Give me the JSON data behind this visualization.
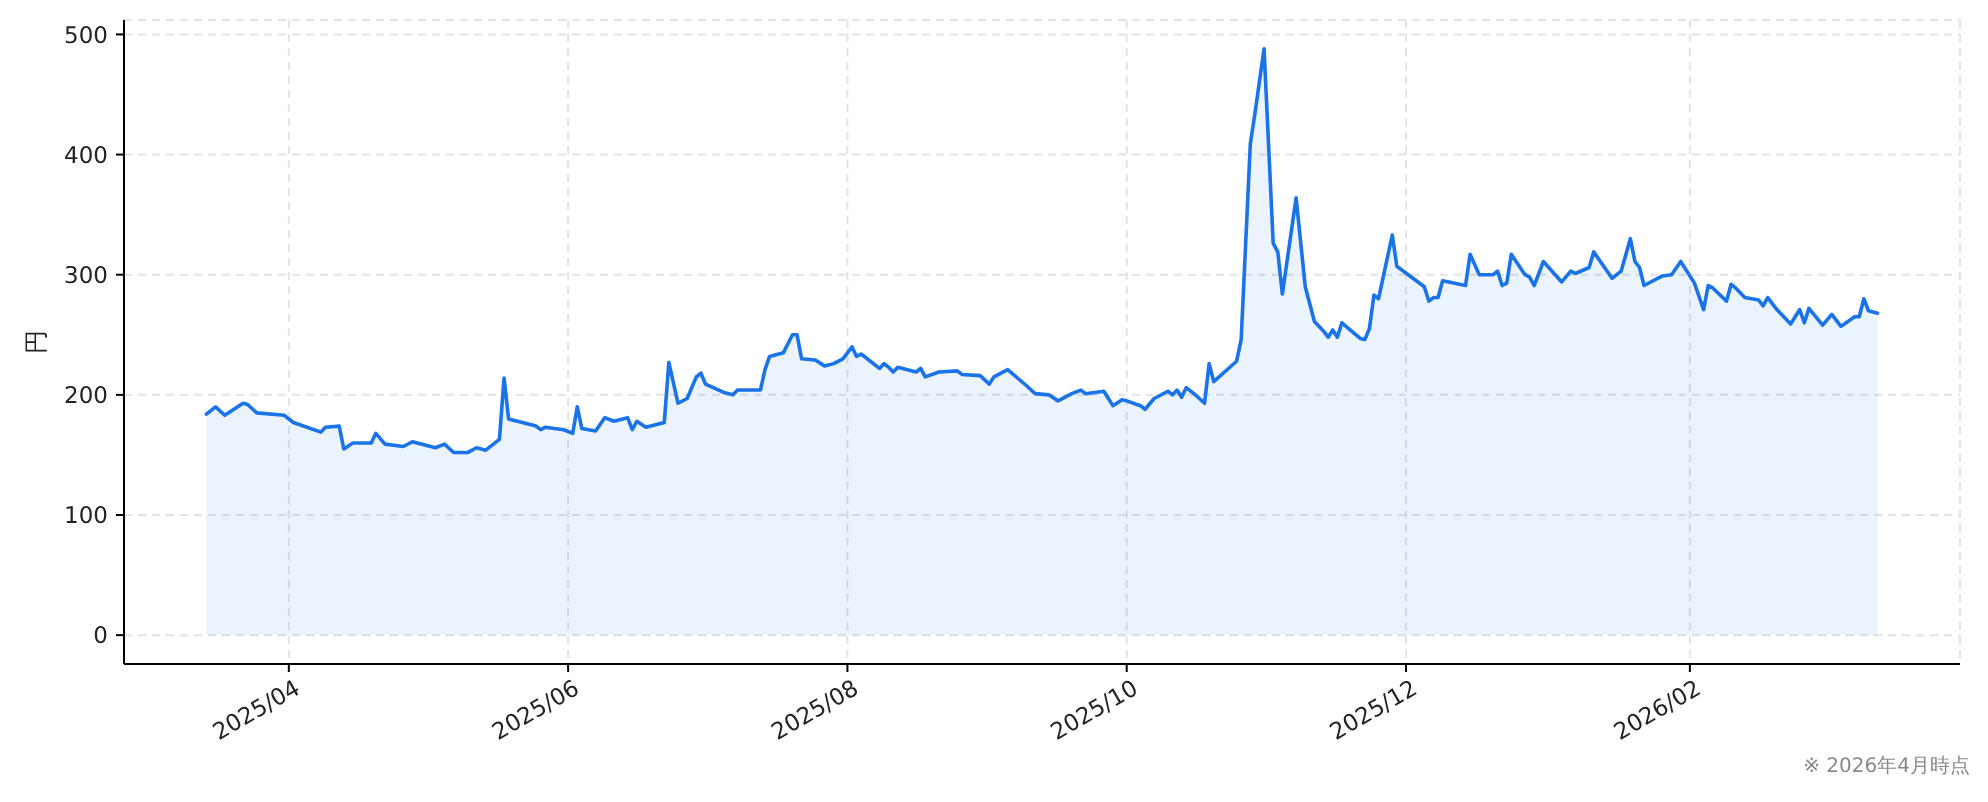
{
  "chart_data": {
    "type": "area",
    "ylabel": "円",
    "annotations": [
      "※ 2026年4月時点"
    ],
    "x": [
      "2025-03-14",
      "2025-03-16",
      "2025-03-18",
      "2025-03-22",
      "2025-03-23",
      "2025-03-25",
      "2025-03-31",
      "2025-04-02",
      "2025-04-08",
      "2025-04-09",
      "2025-04-12",
      "2025-04-13",
      "2025-04-15",
      "2025-04-19",
      "2025-04-20",
      "2025-04-22",
      "2025-04-26",
      "2025-04-28",
      "2025-05-03",
      "2025-05-05",
      "2025-05-07",
      "2025-05-10",
      "2025-05-12",
      "2025-05-14",
      "2025-05-17",
      "2025-05-18",
      "2025-05-19",
      "2025-05-25",
      "2025-05-26",
      "2025-05-27",
      "2025-05-31",
      "2025-06-02",
      "2025-06-03",
      "2025-06-04",
      "2025-06-07",
      "2025-06-09",
      "2025-06-11",
      "2025-06-14",
      "2025-06-15",
      "2025-06-16",
      "2025-06-18",
      "2025-06-22",
      "2025-06-23",
      "2025-06-25",
      "2025-06-27",
      "2025-06-29",
      "2025-06-30",
      "2025-07-01",
      "2025-07-05",
      "2025-07-07",
      "2025-07-08",
      "2025-07-13",
      "2025-07-14",
      "2025-07-15",
      "2025-07-18",
      "2025-07-20",
      "2025-07-21",
      "2025-07-22",
      "2025-07-25",
      "2025-07-27",
      "2025-07-29",
      "2025-07-31",
      "2025-08-02",
      "2025-08-03",
      "2025-08-04",
      "2025-08-08",
      "2025-08-09",
      "2025-08-10",
      "2025-08-11",
      "2025-08-12",
      "2025-08-16",
      "2025-08-17",
      "2025-08-18",
      "2025-08-21",
      "2025-08-25",
      "2025-08-26",
      "2025-08-30",
      "2025-09-01",
      "2025-09-02",
      "2025-09-05",
      "2025-09-09",
      "2025-09-11",
      "2025-09-14",
      "2025-09-16",
      "2025-09-19",
      "2025-09-21",
      "2025-09-22",
      "2025-09-26",
      "2025-09-28",
      "2025-09-30",
      "2025-10-01",
      "2025-10-04",
      "2025-10-05",
      "2025-10-07",
      "2025-10-10",
      "2025-10-11",
      "2025-10-12",
      "2025-10-13",
      "2025-10-14",
      "2025-10-16",
      "2025-10-18",
      "2025-10-19",
      "2025-10-20",
      "2025-10-25",
      "2025-10-26",
      "2025-10-28",
      "2025-10-29",
      "2025-10-31",
      "2025-11-02",
      "2025-11-03",
      "2025-11-04",
      "2025-11-07",
      "2025-11-09",
      "2025-11-11",
      "2025-11-13",
      "2025-11-14",
      "2025-11-15",
      "2025-11-16",
      "2025-11-17",
      "2025-11-21",
      "2025-11-22",
      "2025-11-23",
      "2025-11-24",
      "2025-11-25",
      "2025-11-28",
      "2025-11-29",
      "2025-12-05",
      "2025-12-06",
      "2025-12-07",
      "2025-12-08",
      "2025-12-09",
      "2025-12-14",
      "2025-12-15",
      "2025-12-17",
      "2025-12-20",
      "2025-12-21",
      "2025-12-22",
      "2025-12-23",
      "2025-12-24",
      "2025-12-27",
      "2025-12-28",
      "2025-12-29",
      "2025-12-31",
      "2026-01-04",
      "2026-01-06",
      "2026-01-07",
      "2026-01-10",
      "2026-01-11",
      "2026-01-15",
      "2026-01-17",
      "2026-01-19",
      "2026-01-20",
      "2026-01-21",
      "2026-01-22",
      "2026-01-26",
      "2026-01-28",
      "2026-01-30",
      "2026-02-02",
      "2026-02-04",
      "2026-02-05",
      "2026-02-06",
      "2026-02-09",
      "2026-02-10",
      "2026-02-11",
      "2026-02-13",
      "2026-02-16",
      "2026-02-17",
      "2026-02-18",
      "2026-02-20",
      "2026-02-23",
      "2026-02-25",
      "2026-02-26",
      "2026-02-27",
      "2026-03-02",
      "2026-03-04",
      "2026-03-06",
      "2026-03-09",
      "2026-03-10",
      "2026-03-11",
      "2026-03-12",
      "2026-03-14"
    ],
    "values": [
      184,
      190,
      183,
      193,
      192,
      185,
      183,
      177,
      169,
      173,
      174,
      155,
      160,
      160,
      168,
      159,
      157,
      161,
      156,
      159,
      152,
      152,
      156,
      154,
      163,
      214,
      180,
      174,
      171,
      173,
      171,
      168,
      190,
      172,
      170,
      181,
      178,
      181,
      171,
      178,
      173,
      177,
      227,
      193,
      197,
      215,
      218,
      209,
      202,
      200,
      204,
      204,
      221,
      232,
      235,
      250,
      250,
      230,
      229,
      224,
      226,
      230,
      240,
      232,
      234,
      222,
      226,
      223,
      219,
      223,
      219,
      222,
      215,
      219,
      220,
      217,
      216,
      209,
      215,
      221,
      208,
      201,
      200,
      195,
      201,
      204,
      201,
      203,
      191,
      196,
      195,
      191,
      188,
      197,
      203,
      200,
      204,
      198,
      206,
      200,
      193,
      226,
      211,
      228,
      246,
      409,
      434,
      488,
      326,
      319,
      284,
      364,
      290,
      261,
      253,
      248,
      254,
      248,
      260,
      247,
      246,
      255,
      283,
      280,
      333,
      307,
      290,
      278,
      281,
      281,
      295,
      291,
      317,
      300,
      300,
      303,
      291,
      293,
      317,
      300,
      298,
      291,
      311,
      294,
      303,
      301,
      306,
      319,
      297,
      303,
      330,
      311,
      306,
      291,
      299,
      300,
      311,
      293,
      271,
      291,
      289,
      278,
      292,
      289,
      281,
      279,
      274,
      281,
      271,
      259,
      271,
      260,
      272,
      258,
      267,
      257,
      265,
      265,
      280,
      270,
      268
    ],
    "color": "#1a73e8",
    "xlim": [
      "2025-02-24",
      "2026-04-01"
    ],
    "xticks": [
      {
        "value": "2025-04-01",
        "label": "2025/04"
      },
      {
        "value": "2025-06-01",
        "label": "2025/06"
      },
      {
        "value": "2025-08-01",
        "label": "2025/08"
      },
      {
        "value": "2025-10-01",
        "label": "2025/10"
      },
      {
        "value": "2025-12-01",
        "label": "2025/12"
      },
      {
        "value": "2026-02-01",
        "label": "2026/02"
      }
    ],
    "ylim": [
      -24,
      512
    ],
    "yticks": [
      0,
      100,
      200,
      300,
      400,
      500
    ],
    "grid": true
  }
}
